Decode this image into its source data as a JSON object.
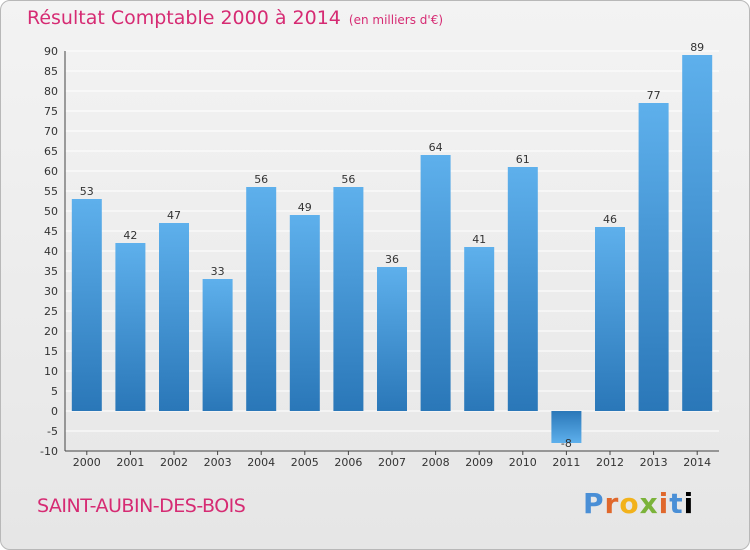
{
  "header": {
    "title": "Résultat Comptable 2000 à 2014",
    "subtitle": "(en milliers d'€)"
  },
  "footer": {
    "commune": "SAINT-AUBIN-DES-BOIS",
    "logo": [
      "P",
      "r",
      "o",
      "x",
      "i",
      "t",
      "i"
    ]
  },
  "chart_data": {
    "type": "bar",
    "title": "Résultat Comptable 2000 à 2014",
    "subtitle": "(en milliers d'€)",
    "xlabel": "",
    "ylabel": "",
    "categories": [
      "2000",
      "2001",
      "2002",
      "2003",
      "2004",
      "2005",
      "2006",
      "2007",
      "2008",
      "2009",
      "2010",
      "2011",
      "2012",
      "2013",
      "2014"
    ],
    "values": [
      53,
      42,
      47,
      33,
      56,
      49,
      56,
      36,
      64,
      41,
      61,
      -8,
      46,
      77,
      89
    ],
    "ylim": [
      -10,
      90
    ],
    "yticks": [
      -10,
      -5,
      0,
      5,
      10,
      15,
      20,
      25,
      30,
      35,
      40,
      45,
      50,
      55,
      60,
      65,
      70,
      75,
      80,
      85,
      90
    ],
    "grid": true,
    "colors": {
      "bar_top": "#5eb0ec",
      "bar_bottom": "#2a77b8",
      "grid": "#ffffff",
      "text": "#333333",
      "accent": "#d62b73"
    }
  }
}
